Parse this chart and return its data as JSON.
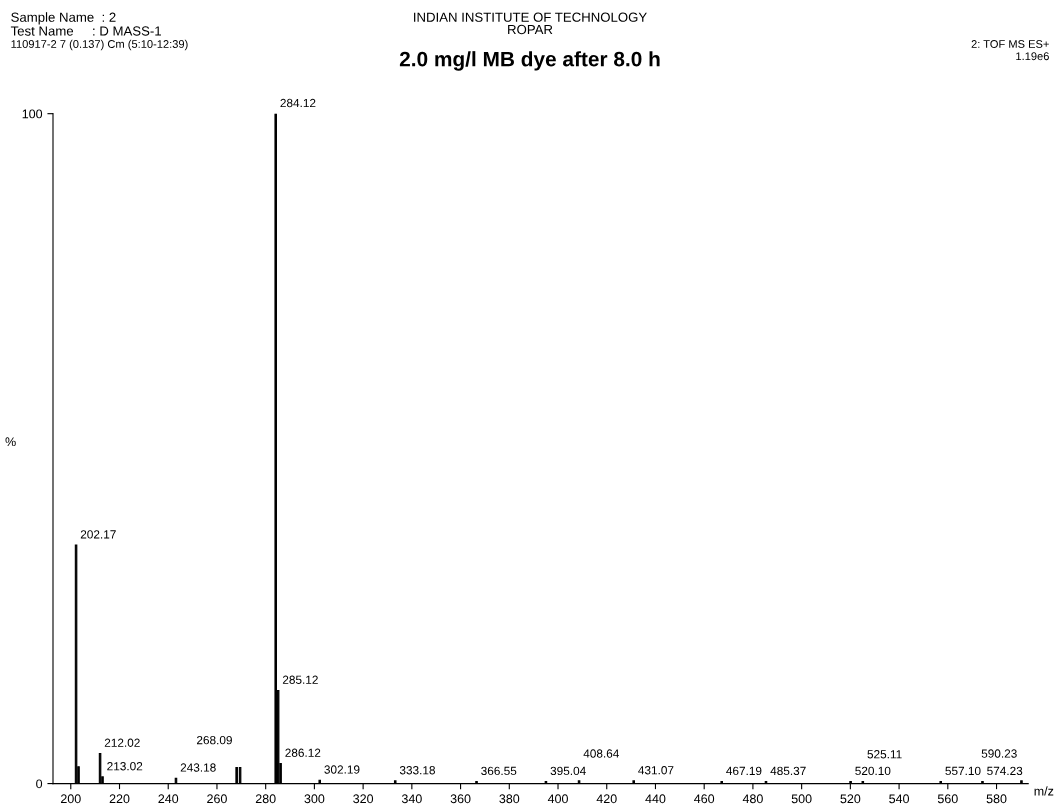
{
  "chart_data": {
    "type": "bar",
    "title": "2.0 mg/l MB dye after 8.0 h",
    "xlabel": "m/z",
    "ylabel": "%",
    "annotations": [
      "Sample Name  : 2",
      "Test Name     : D MASS-1",
      "110917-2 7 (0.137) Cm (5:10-12:39)",
      "INDIAN INSTITUTE OF TECHNOLOGY\nROPAR",
      "2: TOF MS ES+",
      "1.19e6",
      {
        "text": "202.17",
        "x": 202.17,
        "y": 35.6
      },
      {
        "text": "212.02",
        "x": 212.02,
        "y": 4.5
      },
      {
        "text": "213.02",
        "x": 213.02,
        "y": 1.0
      },
      {
        "text": "243.18",
        "x": 243.18,
        "y": 0.8
      },
      {
        "text": "268.09",
        "x": 268.09,
        "y": 2.4
      },
      {
        "text": "284.12",
        "x": 284.12,
        "y": 100
      },
      {
        "text": "285.12",
        "x": 285.12,
        "y": 13.9
      },
      {
        "text": "286.12",
        "x": 286.12,
        "y": 3.0
      },
      {
        "text": "302.19",
        "x": 302.19,
        "y": 0.5
      },
      {
        "text": "333.18",
        "x": 333.18,
        "y": 0.4
      },
      {
        "text": "366.55",
        "x": 366.55,
        "y": 0.3
      },
      {
        "text": "395.04",
        "x": 395.04,
        "y": 0.3
      },
      {
        "text": "408.64",
        "x": 408.64,
        "y": 0.4
      },
      {
        "text": "431.07",
        "x": 431.07,
        "y": 0.4
      },
      {
        "text": "467.19",
        "x": 467.19,
        "y": 0.3
      },
      {
        "text": "485.37",
        "x": 485.37,
        "y": 0.3
      },
      {
        "text": "520.10",
        "x": 520.1,
        "y": 0.3
      },
      {
        "text": "525.11",
        "x": 525.11,
        "y": 0.3
      },
      {
        "text": "557.10",
        "x": 557.1,
        "y": 0.3
      },
      {
        "text": "574.23",
        "x": 574.23,
        "y": 0.3
      },
      {
        "text": "590.23",
        "x": 590.23,
        "y": 0.4
      }
    ],
    "x": [
      202.17,
      203.17,
      212.02,
      213.02,
      243.18,
      268.09,
      269.5,
      284.12,
      285.12,
      286.12,
      302.19,
      333.18,
      366.55,
      395.04,
      408.64,
      431.07,
      467.19,
      485.37,
      520.1,
      525.11,
      557.1,
      574.23,
      590.23
    ],
    "values": [
      35.6,
      2.5,
      4.5,
      1.0,
      0.8,
      2.4,
      2.4,
      100,
      13.9,
      3.0,
      0.5,
      0.4,
      0.3,
      0.3,
      0.4,
      0.4,
      0.3,
      0.3,
      0.3,
      0.3,
      0.3,
      0.3,
      0.4
    ],
    "color": "#000000",
    "xlim": [
      192.7,
      593
    ],
    "xticks": [
      200,
      220,
      240,
      260,
      280,
      300,
      320,
      340,
      360,
      380,
      400,
      420,
      440,
      460,
      480,
      500,
      520,
      540,
      560,
      580
    ],
    "ylim": [
      0,
      100
    ],
    "yticks": [
      0,
      100
    ],
    "grid": false
  }
}
